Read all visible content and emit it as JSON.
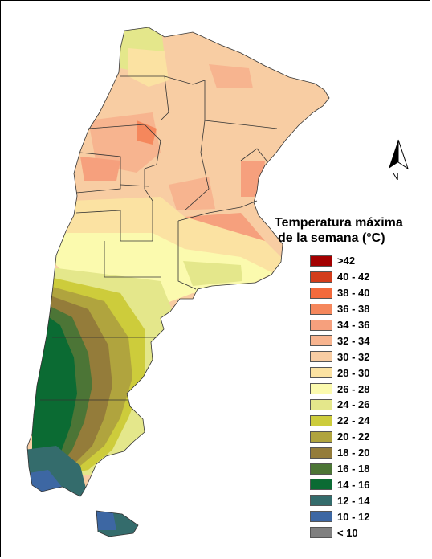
{
  "legend": {
    "title_line1": "Temperatura máxima",
    "title_line2": "de la semana (°C)",
    "items": [
      {
        "label": ">42",
        "color": "#a30000"
      },
      {
        "label": "40 - 42",
        "color": "#d33d1b"
      },
      {
        "label": "38 - 40",
        "color": "#f36a3c"
      },
      {
        "label": "36 - 38",
        "color": "#f5875c"
      },
      {
        "label": "34 - 36",
        "color": "#f6a07d"
      },
      {
        "label": "32 - 34",
        "color": "#f7b48f"
      },
      {
        "label": "30 - 32",
        "color": "#f8cda3"
      },
      {
        "label": "28 - 30",
        "color": "#fbe2a2"
      },
      {
        "label": "26 - 28",
        "color": "#fbfaae"
      },
      {
        "label": "24 - 26",
        "color": "#e4e78b"
      },
      {
        "label": "22 - 24",
        "color": "#cdcc3b"
      },
      {
        "label": "20 - 22",
        "color": "#b0a43e"
      },
      {
        "label": "18 - 20",
        "color": "#947c3a"
      },
      {
        "label": "16 - 18",
        "color": "#4c7536"
      },
      {
        "label": "14 - 16",
        "color": "#0b6b33"
      },
      {
        "label": "12 - 14",
        "color": "#346c6c"
      },
      {
        "label": "10 - 12",
        "color": "#3d67a3"
      },
      {
        "label": "< 10",
        "color": "#808080"
      }
    ]
  },
  "north_arrow": {
    "label": "N"
  }
}
